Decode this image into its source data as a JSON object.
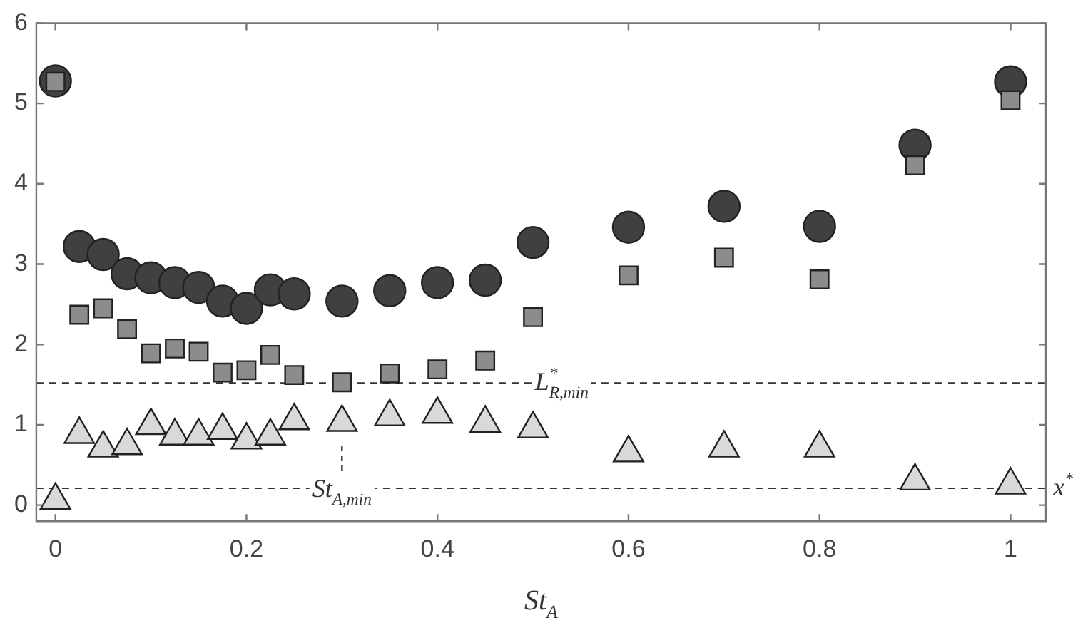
{
  "chart_data": {
    "type": "scatter",
    "xlabel": "St$_{A}$",
    "x": [
      0,
      0.025,
      0.05,
      0.075,
      0.1,
      0.125,
      0.15,
      0.175,
      0.2,
      0.225,
      0.25,
      0.3,
      0.35,
      0.4,
      0.45,
      0.5,
      0.6,
      0.7,
      0.8,
      0.9,
      1
    ],
    "series": [
      {
        "color": "#404040",
        "marker": "circle",
        "values": [
          5.28,
          3.22,
          3.12,
          2.88,
          2.83,
          2.77,
          2.71,
          2.54,
          2.45,
          2.68,
          2.63,
          2.54,
          2.67,
          2.77,
          2.8,
          3.27,
          3.46,
          3.72,
          3.47,
          4.48,
          5.27
        ]
      },
      {
        "color": "#8c8c8c",
        "marker": "square",
        "values": [
          5.27,
          2.37,
          2.45,
          2.19,
          1.89,
          1.95,
          1.91,
          1.65,
          1.68,
          1.87,
          1.62,
          1.53,
          1.64,
          1.69,
          1.8,
          2.34,
          2.86,
          3.08,
          2.81,
          4.23,
          5.04
        ]
      },
      {
        "color": "#d9d9d9",
        "marker": "triangle",
        "values": [
          0.06,
          0.88,
          0.71,
          0.74,
          0.99,
          0.86,
          0.86,
          0.93,
          0.81,
          0.86,
          1.05,
          1.03,
          1.1,
          1.13,
          1.02,
          0.95,
          0.65,
          0.71,
          0.71,
          0.3,
          0.25
        ]
      }
    ],
    "xlim": [
      -0.02,
      1.037
    ],
    "xticks": [
      0,
      0.2,
      0.4,
      0.6,
      0.8,
      1
    ],
    "ylim": [
      -0.2,
      6
    ],
    "yticks": [
      0,
      1,
      2,
      3,
      4,
      5,
      6
    ],
    "ref_lines": [
      {
        "axis": "y",
        "value": 1.52,
        "label": "L$^{*}$$_{R,min}$",
        "line_style": "dashed"
      },
      {
        "axis": "y",
        "value": 0.21,
        "label": "x$^{*}$",
        "line_style": "dashed"
      }
    ],
    "annotations": [
      {
        "text": "St$_{A,min}$",
        "x": 0.3,
        "y": 0.21
      }
    ],
    "grid": false,
    "legend": false
  }
}
